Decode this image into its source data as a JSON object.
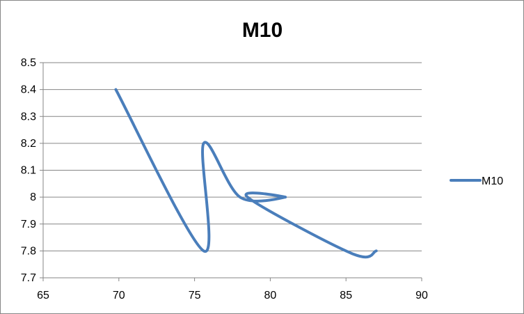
{
  "chart_data": {
    "type": "line",
    "title": "M10",
    "xlabel": "",
    "ylabel": "",
    "xlim": [
      65,
      90
    ],
    "ylim": [
      7.7,
      8.5
    ],
    "x_ticks": [
      "65",
      "70",
      "75",
      "80",
      "85",
      "90"
    ],
    "y_ticks": [
      "7.7",
      "7.8",
      "7.9",
      "8",
      "8.1",
      "8.2",
      "8.3",
      "8.4",
      "8.5"
    ],
    "grid": "horizontal",
    "legend_position": "right",
    "series": [
      {
        "name": "M10",
        "color": "#4a7ebb",
        "smooth": true,
        "points": [
          {
            "x": 69.8,
            "y": 8.4
          },
          {
            "x": 75.6,
            "y": 7.8
          },
          {
            "x": 75.6,
            "y": 8.2
          },
          {
            "x": 78.0,
            "y": 8.0
          },
          {
            "x": 81.0,
            "y": 8.0
          },
          {
            "x": 78.5,
            "y": 8.0
          },
          {
            "x": 85.4,
            "y": 7.79
          },
          {
            "x": 87.0,
            "y": 7.8
          }
        ]
      }
    ]
  }
}
